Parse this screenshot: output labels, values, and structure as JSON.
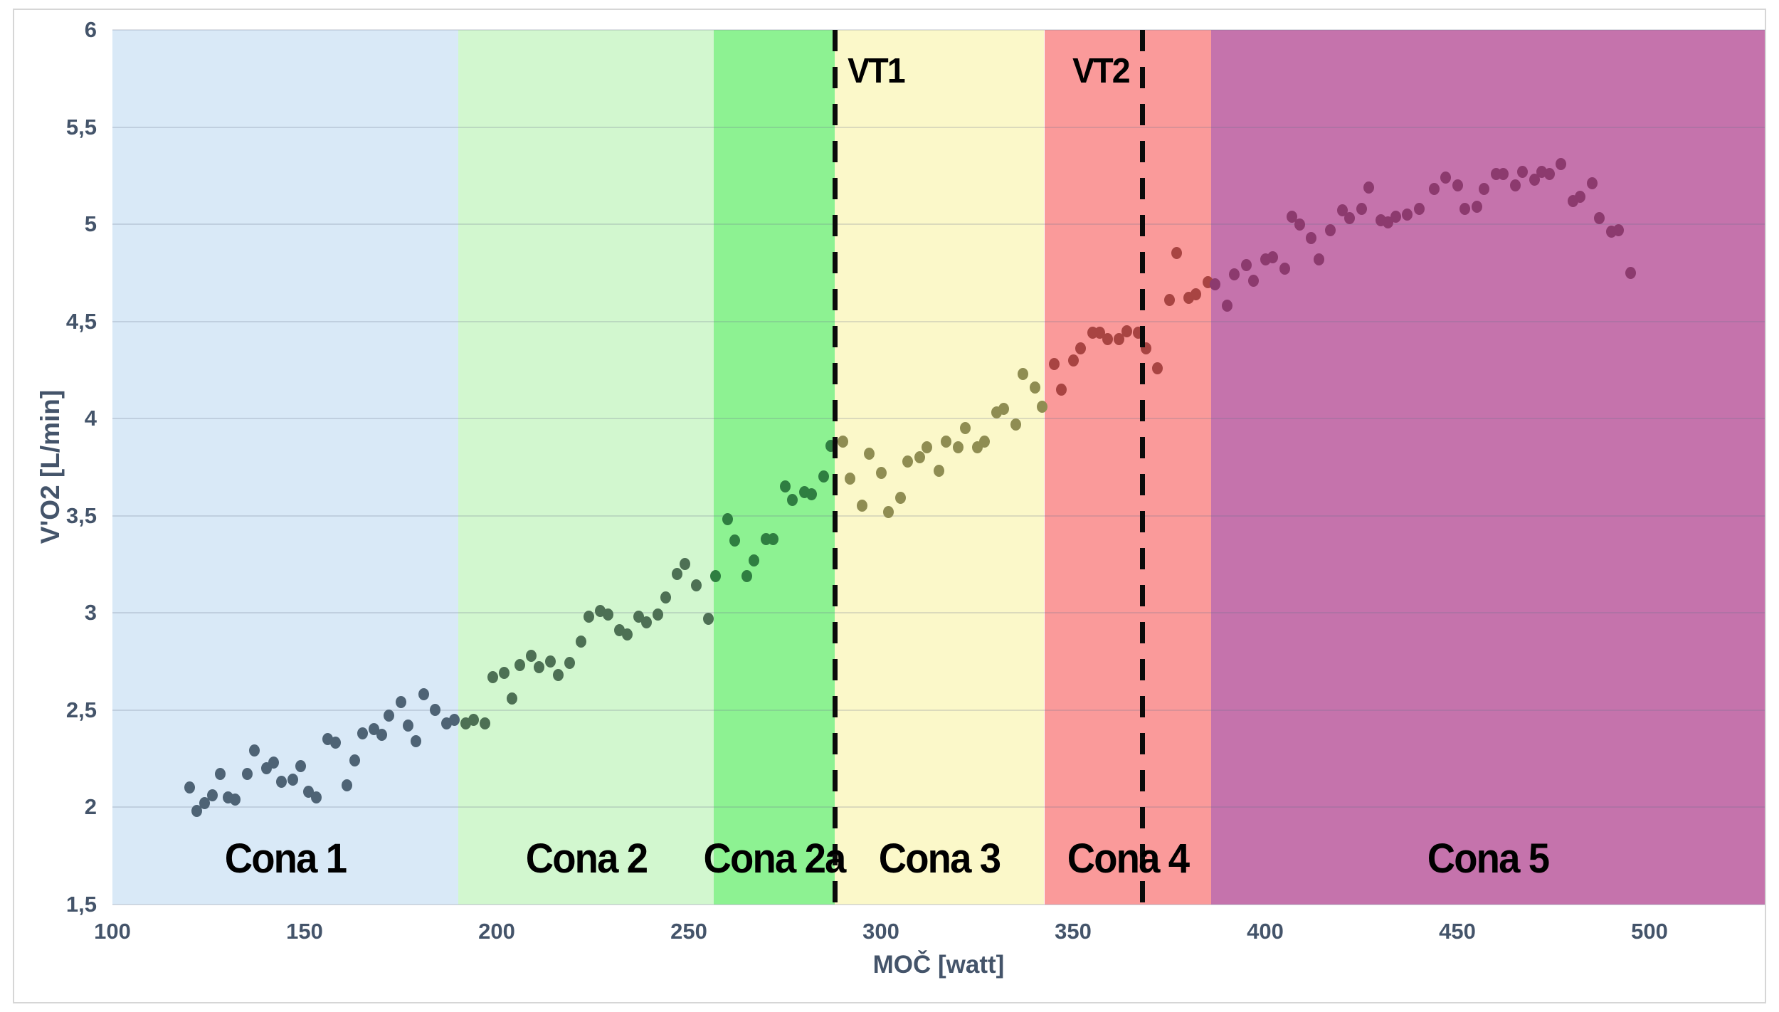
{
  "colors": {
    "axis_text": "#44546a",
    "gridline": "rgba(105,115,140,0.22)",
    "threshold_line": "#0b0b0b",
    "chart_border": "#d6d6d6",
    "background": "#ffffff"
  },
  "chart_data": {
    "type": "scatter",
    "xlabel": "MOČ [watt]",
    "ylabel": "V'O2 [L/min]",
    "x_axis": {
      "min": 100,
      "max": 530,
      "ticks": [
        {
          "label": "100",
          "value": 100
        },
        {
          "label": "150",
          "value": 150
        },
        {
          "label": "200",
          "value": 200
        },
        {
          "label": "250",
          "value": 250
        },
        {
          "label": "300",
          "value": 300
        },
        {
          "label": "350",
          "value": 350
        },
        {
          "label": "400",
          "value": 400
        },
        {
          "label": "450",
          "value": 450
        },
        {
          "label": "500",
          "value": 500
        }
      ]
    },
    "y_axis": {
      "min": 1.5,
      "max": 6,
      "ticks": [
        {
          "label": "6",
          "value": 6
        },
        {
          "label": "5,5",
          "value": 5.5
        },
        {
          "label": "5",
          "value": 5
        },
        {
          "label": "4,5",
          "value": 4.5
        },
        {
          "label": "4",
          "value": 4
        },
        {
          "label": "3,5",
          "value": 3.5
        },
        {
          "label": "3",
          "value": 3
        },
        {
          "label": "2,5",
          "value": 2.5
        },
        {
          "label": "2",
          "value": 2
        },
        {
          "label": "1,5",
          "value": 1.5
        }
      ]
    },
    "grid": "horizontal-only",
    "legend": "none",
    "zones": [
      {
        "label": "Cona 1",
        "from": 100,
        "to": 190,
        "fill": "#d9e9f7",
        "dot_color": "#4e6375"
      },
      {
        "label": "Cona 2",
        "from": 190,
        "to": 256.5,
        "fill": "#d2f7cf",
        "dot_color": "#4d7054"
      },
      {
        "label": "Cona 2a",
        "from": 256.5,
        "to": 288,
        "fill": "#8df292",
        "dot_color": "#2f7e41"
      },
      {
        "label": "Cona 3",
        "from": 288,
        "to": 342.5,
        "fill": "#fbf8c9",
        "dot_color": "#8f8d52"
      },
      {
        "label": "Cona 4",
        "from": 342.5,
        "to": 386,
        "fill": "#fa9a9a",
        "dot_color": "#a84442"
      },
      {
        "label": "Cona 5",
        "from": 386,
        "to": 530,
        "fill": "#c573ac",
        "dot_color": "#8c3a6e"
      }
    ],
    "thresholds": [
      {
        "label": "VT1",
        "value": 288,
        "label_side": "right"
      },
      {
        "label": "VT2",
        "value": 368,
        "label_side": "left"
      }
    ],
    "series": [
      {
        "name": "V'O2",
        "points": [
          [
            120,
            2.1
          ],
          [
            122,
            1.98
          ],
          [
            124,
            2.02
          ],
          [
            126,
            2.06
          ],
          [
            128,
            2.17
          ],
          [
            130,
            2.05
          ],
          [
            132,
            2.04
          ],
          [
            135,
            2.17
          ],
          [
            137,
            2.29
          ],
          [
            140,
            2.2
          ],
          [
            142,
            2.23
          ],
          [
            144,
            2.13
          ],
          [
            147,
            2.14
          ],
          [
            149,
            2.21
          ],
          [
            151,
            2.08
          ],
          [
            153,
            2.05
          ],
          [
            156,
            2.35
          ],
          [
            158,
            2.33
          ],
          [
            161,
            2.11
          ],
          [
            163,
            2.24
          ],
          [
            165,
            2.38
          ],
          [
            168,
            2.4
          ],
          [
            170,
            2.37
          ],
          [
            172,
            2.47
          ],
          [
            175,
            2.54
          ],
          [
            177,
            2.42
          ],
          [
            179,
            2.34
          ],
          [
            181,
            2.58
          ],
          [
            184,
            2.5
          ],
          [
            187,
            2.43
          ],
          [
            189,
            2.45
          ],
          [
            192,
            2.43
          ],
          [
            194,
            2.45
          ],
          [
            197,
            2.43
          ],
          [
            199,
            2.67
          ],
          [
            202,
            2.69
          ],
          [
            204,
            2.56
          ],
          [
            206,
            2.73
          ],
          [
            209,
            2.78
          ],
          [
            211,
            2.72
          ],
          [
            214,
            2.75
          ],
          [
            216,
            2.68
          ],
          [
            219,
            2.74
          ],
          [
            222,
            2.85
          ],
          [
            224,
            2.98
          ],
          [
            227,
            3.01
          ],
          [
            229,
            2.99
          ],
          [
            232,
            2.91
          ],
          [
            234,
            2.89
          ],
          [
            237,
            2.98
          ],
          [
            239,
            2.95
          ],
          [
            242,
            2.99
          ],
          [
            244,
            3.08
          ],
          [
            247,
            3.2
          ],
          [
            249,
            3.25
          ],
          [
            252,
            3.14
          ],
          [
            255,
            2.97
          ],
          [
            257,
            3.19
          ],
          [
            260,
            3.48
          ],
          [
            262,
            3.37
          ],
          [
            265,
            3.19
          ],
          [
            267,
            3.27
          ],
          [
            270,
            3.38
          ],
          [
            272,
            3.38
          ],
          [
            275,
            3.65
          ],
          [
            277,
            3.58
          ],
          [
            280,
            3.62
          ],
          [
            282,
            3.61
          ],
          [
            285,
            3.7
          ],
          [
            287,
            3.86
          ],
          [
            290,
            3.88
          ],
          [
            292,
            3.69
          ],
          [
            295,
            3.55
          ],
          [
            297,
            3.82
          ],
          [
            300,
            3.72
          ],
          [
            302,
            3.52
          ],
          [
            305,
            3.59
          ],
          [
            307,
            3.78
          ],
          [
            310,
            3.8
          ],
          [
            312,
            3.85
          ],
          [
            315,
            3.73
          ],
          [
            317,
            3.88
          ],
          [
            320,
            3.85
          ],
          [
            322,
            3.95
          ],
          [
            325,
            3.85
          ],
          [
            327,
            3.88
          ],
          [
            330,
            4.03
          ],
          [
            332,
            4.05
          ],
          [
            335,
            3.97
          ],
          [
            337,
            4.23
          ],
          [
            340,
            4.16
          ],
          [
            342,
            4.06
          ],
          [
            345,
            4.28
          ],
          [
            347,
            4.15
          ],
          [
            350,
            4.3
          ],
          [
            352,
            4.36
          ],
          [
            355,
            4.44
          ],
          [
            357,
            4.44
          ],
          [
            359,
            4.41
          ],
          [
            362,
            4.41
          ],
          [
            364,
            4.45
          ],
          [
            367,
            4.44
          ],
          [
            369,
            4.36
          ],
          [
            372,
            4.26
          ],
          [
            375,
            4.61
          ],
          [
            377,
            4.85
          ],
          [
            380,
            4.62
          ],
          [
            382,
            4.64
          ],
          [
            385,
            4.7
          ],
          [
            387,
            4.69
          ],
          [
            390,
            4.58
          ],
          [
            392,
            4.74
          ],
          [
            395,
            4.79
          ],
          [
            397,
            4.71
          ],
          [
            400,
            4.82
          ],
          [
            402,
            4.83
          ],
          [
            405,
            4.77
          ],
          [
            407,
            5.04
          ],
          [
            409,
            5.0
          ],
          [
            412,
            4.93
          ],
          [
            414,
            4.82
          ],
          [
            417,
            4.97
          ],
          [
            420,
            5.07
          ],
          [
            422,
            5.03
          ],
          [
            425,
            5.08
          ],
          [
            427,
            5.19
          ],
          [
            430,
            5.02
          ],
          [
            432,
            5.01
          ],
          [
            434,
            5.04
          ],
          [
            437,
            5.05
          ],
          [
            440,
            5.08
          ],
          [
            444,
            5.18
          ],
          [
            447,
            5.24
          ],
          [
            450,
            5.2
          ],
          [
            452,
            5.08
          ],
          [
            455,
            5.09
          ],
          [
            457,
            5.18
          ],
          [
            460,
            5.26
          ],
          [
            462,
            5.26
          ],
          [
            465,
            5.2
          ],
          [
            467,
            5.27
          ],
          [
            470,
            5.23
          ],
          [
            472,
            5.27
          ],
          [
            474,
            5.26
          ],
          [
            477,
            5.31
          ],
          [
            480,
            5.12
          ],
          [
            482,
            5.14
          ],
          [
            485,
            5.21
          ],
          [
            487,
            5.03
          ],
          [
            490,
            4.96
          ],
          [
            492,
            4.97
          ],
          [
            495,
            4.75
          ]
        ]
      }
    ]
  }
}
